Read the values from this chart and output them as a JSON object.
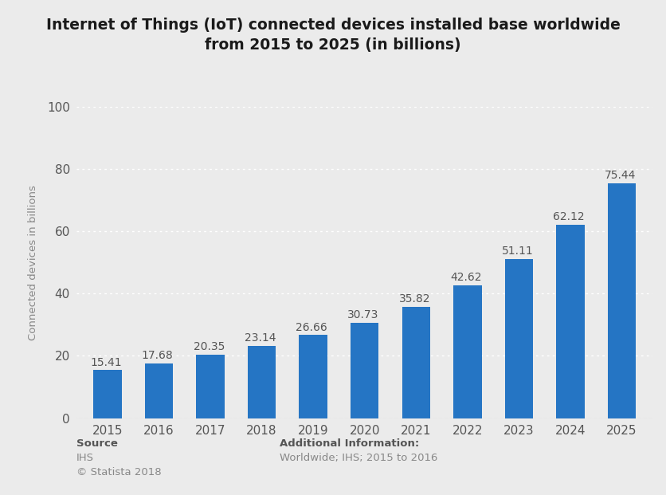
{
  "years": [
    "2015",
    "2016",
    "2017",
    "2018",
    "2019",
    "2020",
    "2021",
    "2022",
    "2023",
    "2024",
    "2025"
  ],
  "values": [
    15.41,
    17.68,
    20.35,
    23.14,
    26.66,
    30.73,
    35.82,
    42.62,
    51.11,
    62.12,
    75.44
  ],
  "bar_color": "#2575C4",
  "title_line1": "Internet of Things (IoT) connected devices installed base worldwide",
  "title_line2": "from 2015 to 2025 (in billions)",
  "ylabel": "Connected devices in billions",
  "ylim": [
    0,
    100
  ],
  "yticks": [
    0,
    20,
    40,
    60,
    80,
    100
  ],
  "background_color": "#ebebeb",
  "plot_background_color": "#ebebeb",
  "grid_color": "#ffffff",
  "source_label": "Source",
  "source_body": "IHS\n© Statista 2018",
  "additional_label": "Additional Information:",
  "additional_body": "Worldwide; IHS; 2015 to 2016",
  "title_fontsize": 13.5,
  "label_fontsize": 9.5,
  "tick_fontsize": 11,
  "value_fontsize": 10,
  "footer_fontsize": 9.5,
  "bar_width": 0.55
}
